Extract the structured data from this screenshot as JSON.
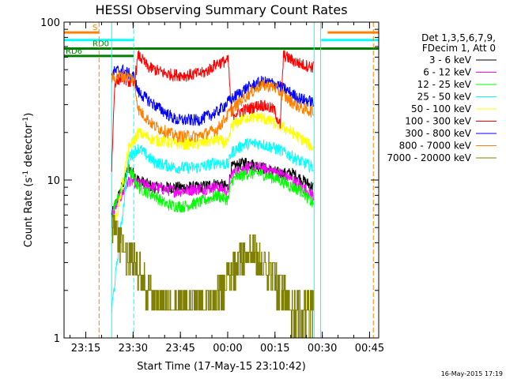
{
  "chart_data": {
    "type": "line",
    "title": "HESSI Observing Summary Count Rates",
    "xlabel": "Start Time (17-May-15 23:10:42)",
    "ylabel_main": "Count Rate (s",
    "ylabel_sup": "-1",
    "ylabel_tail": " detector",
    "ylabel_end": ")",
    "y_scale": "log",
    "ylim": [
      1,
      100
    ],
    "y_ticks": [
      {
        "value": 1,
        "label": "1"
      },
      {
        "value": 10,
        "label": "10"
      },
      {
        "value": 100,
        "label": "100"
      }
    ],
    "xlim_minutes": [
      -2.6,
      97.2
    ],
    "x_ticks": [
      {
        "t": 4.3,
        "label": "23:15"
      },
      {
        "t": 19.3,
        "label": "23:30"
      },
      {
        "t": 34.3,
        "label": "23:45"
      },
      {
        "t": 49.3,
        "label": "00:00"
      },
      {
        "t": 64.3,
        "label": "00:15"
      },
      {
        "t": 79.3,
        "label": "00:30"
      },
      {
        "t": 94.3,
        "label": "00:45"
      }
    ],
    "legend_header": [
      "Det 1,3,5,6,7,9,",
      "FDecim 1, Att 0"
    ],
    "legend_placement": "right",
    "series": [
      {
        "name": "3 - 6 keV",
        "color": "#000000",
        "pts": [
          [
            12.5,
            6
          ],
          [
            18,
            12
          ],
          [
            21,
            10
          ],
          [
            26,
            9
          ],
          [
            33,
            9
          ],
          [
            40,
            9
          ],
          [
            46,
            9.5
          ],
          [
            49.5,
            9
          ],
          [
            50.5,
            12
          ],
          [
            55,
            13
          ],
          [
            60,
            12
          ],
          [
            66,
            11
          ],
          [
            70,
            11
          ],
          [
            73,
            10
          ],
          [
            76.5,
            9
          ]
        ]
      },
      {
        "name": "6 - 12 keV",
        "color": "#ff00ff",
        "pts": [
          [
            12.5,
            6
          ],
          [
            18,
            10
          ],
          [
            21,
            9.5
          ],
          [
            26,
            9
          ],
          [
            33,
            8.5
          ],
          [
            40,
            8.8
          ],
          [
            46,
            9
          ],
          [
            49.5,
            8.5
          ],
          [
            50.5,
            11
          ],
          [
            55,
            12
          ],
          [
            60,
            12
          ],
          [
            66,
            11
          ],
          [
            70,
            10
          ],
          [
            73,
            9
          ],
          [
            76.5,
            8
          ]
        ]
      },
      {
        "name": "12 - 25 keV",
        "color": "#00ff00",
        "pts": [
          [
            12.5,
            6
          ],
          [
            18,
            12
          ],
          [
            21,
            9
          ],
          [
            26,
            8
          ],
          [
            30,
            7
          ],
          [
            35,
            6.8
          ],
          [
            40,
            7.2
          ],
          [
            46,
            8
          ],
          [
            49.5,
            7.5
          ],
          [
            50.5,
            10
          ],
          [
            55,
            11
          ],
          [
            60,
            11
          ],
          [
            66,
            10
          ],
          [
            70,
            9
          ],
          [
            73,
            8.5
          ],
          [
            76.5,
            7
          ]
        ]
      },
      {
        "name": "25 - 50 keV",
        "color": "#00ffff",
        "pts": [
          [
            12.5,
            1.5
          ],
          [
            18,
            14
          ],
          [
            21,
            16
          ],
          [
            26,
            13
          ],
          [
            33,
            12
          ],
          [
            40,
            12
          ],
          [
            46,
            13
          ],
          [
            49.5,
            12.5
          ],
          [
            50.5,
            15
          ],
          [
            55,
            17
          ],
          [
            60,
            17
          ],
          [
            66,
            15.5
          ],
          [
            70,
            14
          ],
          [
            73,
            13
          ],
          [
            76.5,
            12
          ]
        ]
      },
      {
        "name": "50 - 100 keV",
        "color": "#ffff00",
        "pts": [
          [
            12.5,
            4
          ],
          [
            18,
            16
          ],
          [
            21,
            20
          ],
          [
            26,
            18
          ],
          [
            33,
            17
          ],
          [
            40,
            17
          ],
          [
            46,
            18
          ],
          [
            49.5,
            17
          ],
          [
            50.5,
            22
          ],
          [
            55,
            25
          ],
          [
            60,
            25
          ],
          [
            66,
            22
          ],
          [
            70,
            20
          ],
          [
            73,
            18
          ],
          [
            76.5,
            16
          ]
        ]
      },
      {
        "name": "100 - 300 keV",
        "color": "#ff0000",
        "pts": [
          [
            12.5,
            12
          ],
          [
            13.5,
            42
          ],
          [
            16,
            45
          ],
          [
            19.5,
            40
          ],
          [
            21,
            62
          ],
          [
            24,
            52
          ],
          [
            30,
            47
          ],
          [
            36,
            46
          ],
          [
            42,
            48
          ],
          [
            46,
            55
          ],
          [
            49.5,
            57
          ],
          [
            50.5,
            26
          ],
          [
            55,
            28
          ],
          [
            60,
            30
          ],
          [
            64,
            28
          ],
          [
            66,
            22
          ],
          [
            67,
            62
          ],
          [
            70,
            57
          ],
          [
            73,
            54
          ],
          [
            76.5,
            52
          ]
        ]
      },
      {
        "name": "300 - 800 keV",
        "color": "#0000ff",
        "pts": [
          [
            12.5,
            48
          ],
          [
            16,
            50
          ],
          [
            19.5,
            45
          ],
          [
            21,
            36
          ],
          [
            26,
            30
          ],
          [
            33,
            24
          ],
          [
            40,
            24
          ],
          [
            46,
            27
          ],
          [
            50,
            32
          ],
          [
            55,
            38
          ],
          [
            60,
            42
          ],
          [
            64,
            41
          ],
          [
            68,
            37
          ],
          [
            72,
            33
          ],
          [
            76.5,
            31
          ]
        ]
      },
      {
        "name": "800 - 7000 keV",
        "color": "#ff8000",
        "pts": [
          [
            12.5,
            44
          ],
          [
            16,
            46
          ],
          [
            19.5,
            44
          ],
          [
            21,
            28
          ],
          [
            26,
            22
          ],
          [
            33,
            19
          ],
          [
            40,
            19
          ],
          [
            46,
            21
          ],
          [
            50,
            27
          ],
          [
            55,
            34
          ],
          [
            60,
            40
          ],
          [
            64,
            39
          ],
          [
            68,
            33
          ],
          [
            72,
            29
          ],
          [
            76.5,
            27
          ]
        ]
      },
      {
        "name": "7000 - 20000 keV",
        "color": "#808000",
        "pts": [
          [
            12.5,
            5
          ],
          [
            15,
            4
          ],
          [
            18,
            3
          ],
          [
            20,
            3
          ],
          [
            22,
            2.5
          ],
          [
            24,
            2
          ],
          [
            26,
            1.7
          ],
          [
            30,
            1.6
          ],
          [
            40,
            1.6
          ],
          [
            45,
            1.6
          ],
          [
            47,
            2
          ],
          [
            50,
            2.5
          ],
          [
            53,
            3
          ],
          [
            55,
            3.5
          ],
          [
            58,
            3.5
          ],
          [
            60,
            3
          ],
          [
            63,
            2.5
          ],
          [
            66,
            2
          ],
          [
            70,
            1.5
          ],
          [
            76.5,
            1.5
          ]
        ]
      }
    ],
    "segments": [
      {
        "label": "S",
        "color": "#ff8000",
        "y": 86,
        "t0": -2.6,
        "t1": 8.5
      },
      {
        "label": "",
        "color": "#ff8000",
        "y": 86,
        "t0": 81,
        "t1": 97.2
      },
      {
        "label": "",
        "color": "#00ffff",
        "y": 77,
        "t0": -2.6,
        "t1": 19.5
      },
      {
        "label": "",
        "color": "#00ffff",
        "y": 77,
        "t0": 79,
        "t1": 97.2
      },
      {
        "label": "RD0",
        "color": "#008000",
        "y": 68,
        "t0": -2.6,
        "t1": 97.2
      },
      {
        "label": "RD6",
        "color": "#008000",
        "y": 61,
        "t0": -2.6,
        "t1": 19.5
      }
    ],
    "vlines": [
      {
        "t": 8.5,
        "color": "#ff8000",
        "style": "dashed"
      },
      {
        "t": 19.5,
        "color": "#00ffff",
        "style": "dashed"
      },
      {
        "t": 95.5,
        "color": "#ff8000",
        "style": "dashed"
      },
      {
        "t": 76.7,
        "color": "#00ffff",
        "style": "solid"
      },
      {
        "t": 78.8,
        "color": "#00ffff",
        "style": "solid"
      },
      {
        "t": 12.5,
        "color": "#00ffff",
        "style": "solid"
      }
    ]
  },
  "footer": {
    "date_stamp": "16-May-2015 17:19"
  }
}
